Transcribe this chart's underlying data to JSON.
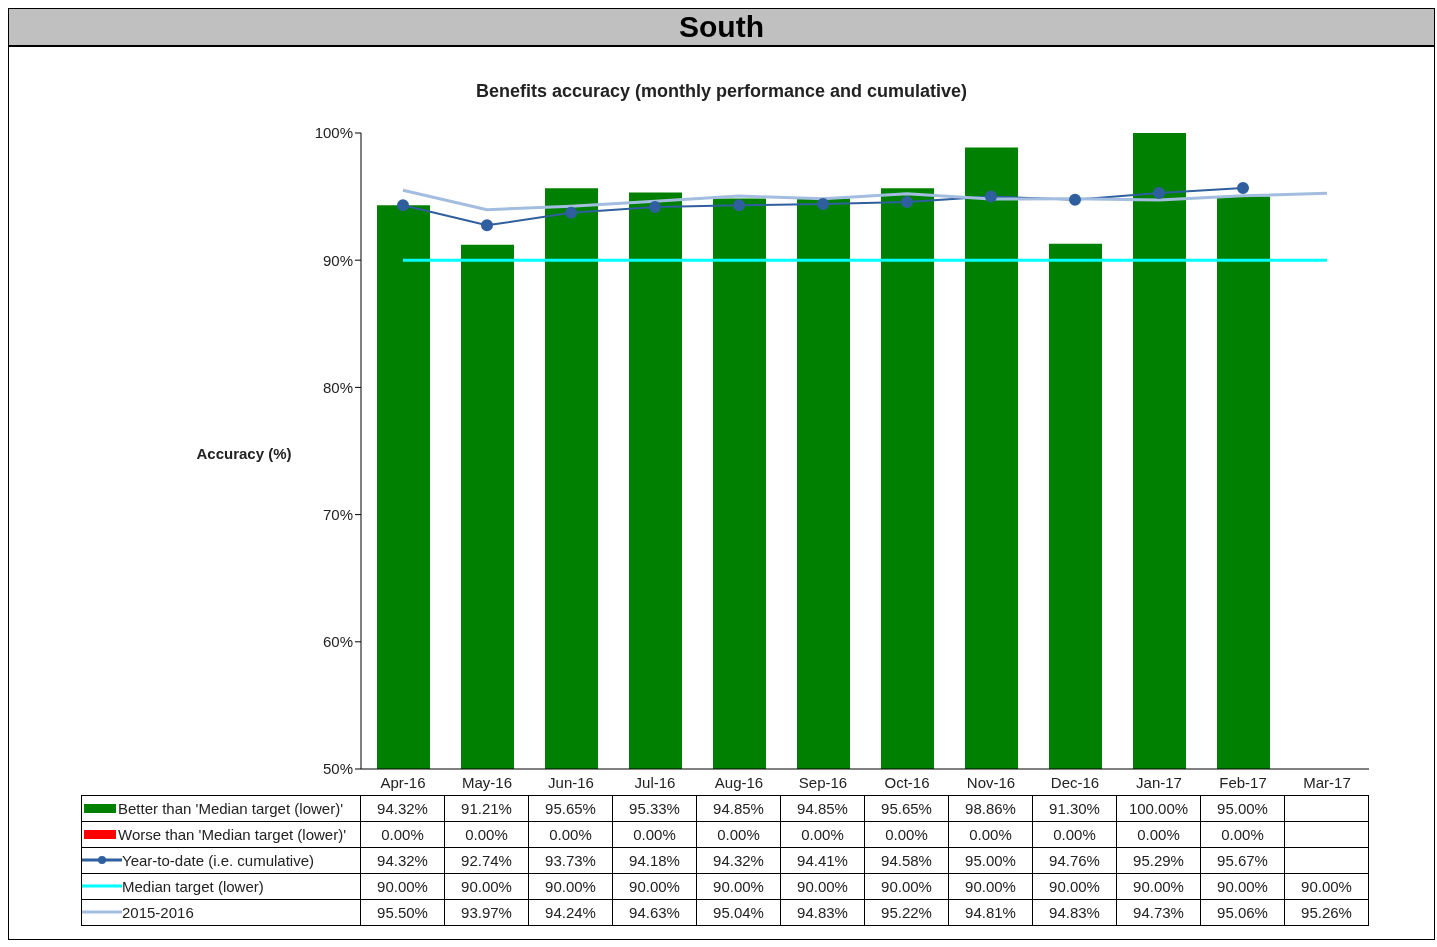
{
  "chart_data": {
    "type": "bar",
    "title": "South",
    "subtitle": "Benefits accuracy (monthly performance and cumulative)",
    "ylabel": "Accuracy (%)",
    "categories": [
      "Apr-16",
      "May-16",
      "Jun-16",
      "Jul-16",
      "Aug-16",
      "Sep-16",
      "Oct-16",
      "Nov-16",
      "Dec-16",
      "Jan-17",
      "Feb-17",
      "Mar-17"
    ],
    "ylim": [
      50,
      100
    ],
    "yticks": [
      {
        "value": 50,
        "label": "50%"
      },
      {
        "value": 60,
        "label": "60%"
      },
      {
        "value": 70,
        "label": "70%"
      },
      {
        "value": 80,
        "label": "80%"
      },
      {
        "value": 90,
        "label": "90%"
      },
      {
        "value": 100,
        "label": "100%"
      }
    ],
    "grid": false,
    "legend": "bottom",
    "series": [
      {
        "name": "Better than 'Median target (lower)'",
        "color": "#008000",
        "values": [
          94.32,
          91.21,
          95.65,
          95.33,
          94.85,
          94.85,
          95.65,
          98.86,
          91.3,
          100,
          95.0,
          null
        ],
        "value_labels": [
          "94.32%",
          "91.21%",
          "95.65%",
          "95.33%",
          "94.85%",
          "94.85%",
          "95.65%",
          "98.86%",
          "91.30%",
          "100.00%",
          "95.00%",
          null
        ]
      },
      {
        "name": "Worse than 'Median target (lower)'",
        "color": "#ff0000",
        "values": [
          null,
          null,
          null,
          null,
          null,
          null,
          null,
          null,
          null,
          null,
          null,
          null
        ],
        "value_labels": [
          "0.00%",
          "0.00%",
          "0.00%",
          "0.00%",
          "0.00%",
          "0.00%",
          "0.00%",
          "0.00%",
          "0.00%",
          "0.00%",
          "0.00%",
          null
        ]
      },
      {
        "name": "Year-to-date (i.e. cumulative)",
        "type": "line",
        "color": "#2f5f9e",
        "marker": "circle",
        "values": [
          94.32,
          92.74,
          93.73,
          94.18,
          94.32,
          94.41,
          94.58,
          95.0,
          94.76,
          95.29,
          95.67,
          null
        ],
        "value_labels": [
          "94.32%",
          "92.74%",
          "93.73%",
          "94.18%",
          "94.32%",
          "94.41%",
          "94.58%",
          "95.00%",
          "94.76%",
          "95.29%",
          "95.67%",
          null
        ]
      },
      {
        "name": "Median target (lower)",
        "type": "line",
        "color": "#00ffff",
        "marker": "none",
        "values": [
          90,
          90,
          90,
          90,
          90,
          90,
          90,
          90,
          90,
          90,
          90,
          90
        ],
        "value_labels": [
          "90.00%",
          "90.00%",
          "90.00%",
          "90.00%",
          "90.00%",
          "90.00%",
          "90.00%",
          "90.00%",
          "90.00%",
          "90.00%",
          "90.00%",
          "90.00%"
        ]
      },
      {
        "name": "2015-2016",
        "type": "line",
        "color": "#a3bde0",
        "marker": "none",
        "values": [
          95.5,
          93.97,
          94.24,
          94.63,
          95.04,
          94.83,
          95.22,
          94.81,
          94.83,
          94.73,
          95.06,
          95.26
        ],
        "value_labels": [
          "95.50%",
          "93.97%",
          "94.24%",
          "94.63%",
          "95.04%",
          "94.83%",
          "95.22%",
          "94.81%",
          "94.83%",
          "94.73%",
          "95.06%",
          "95.26%"
        ]
      }
    ]
  }
}
